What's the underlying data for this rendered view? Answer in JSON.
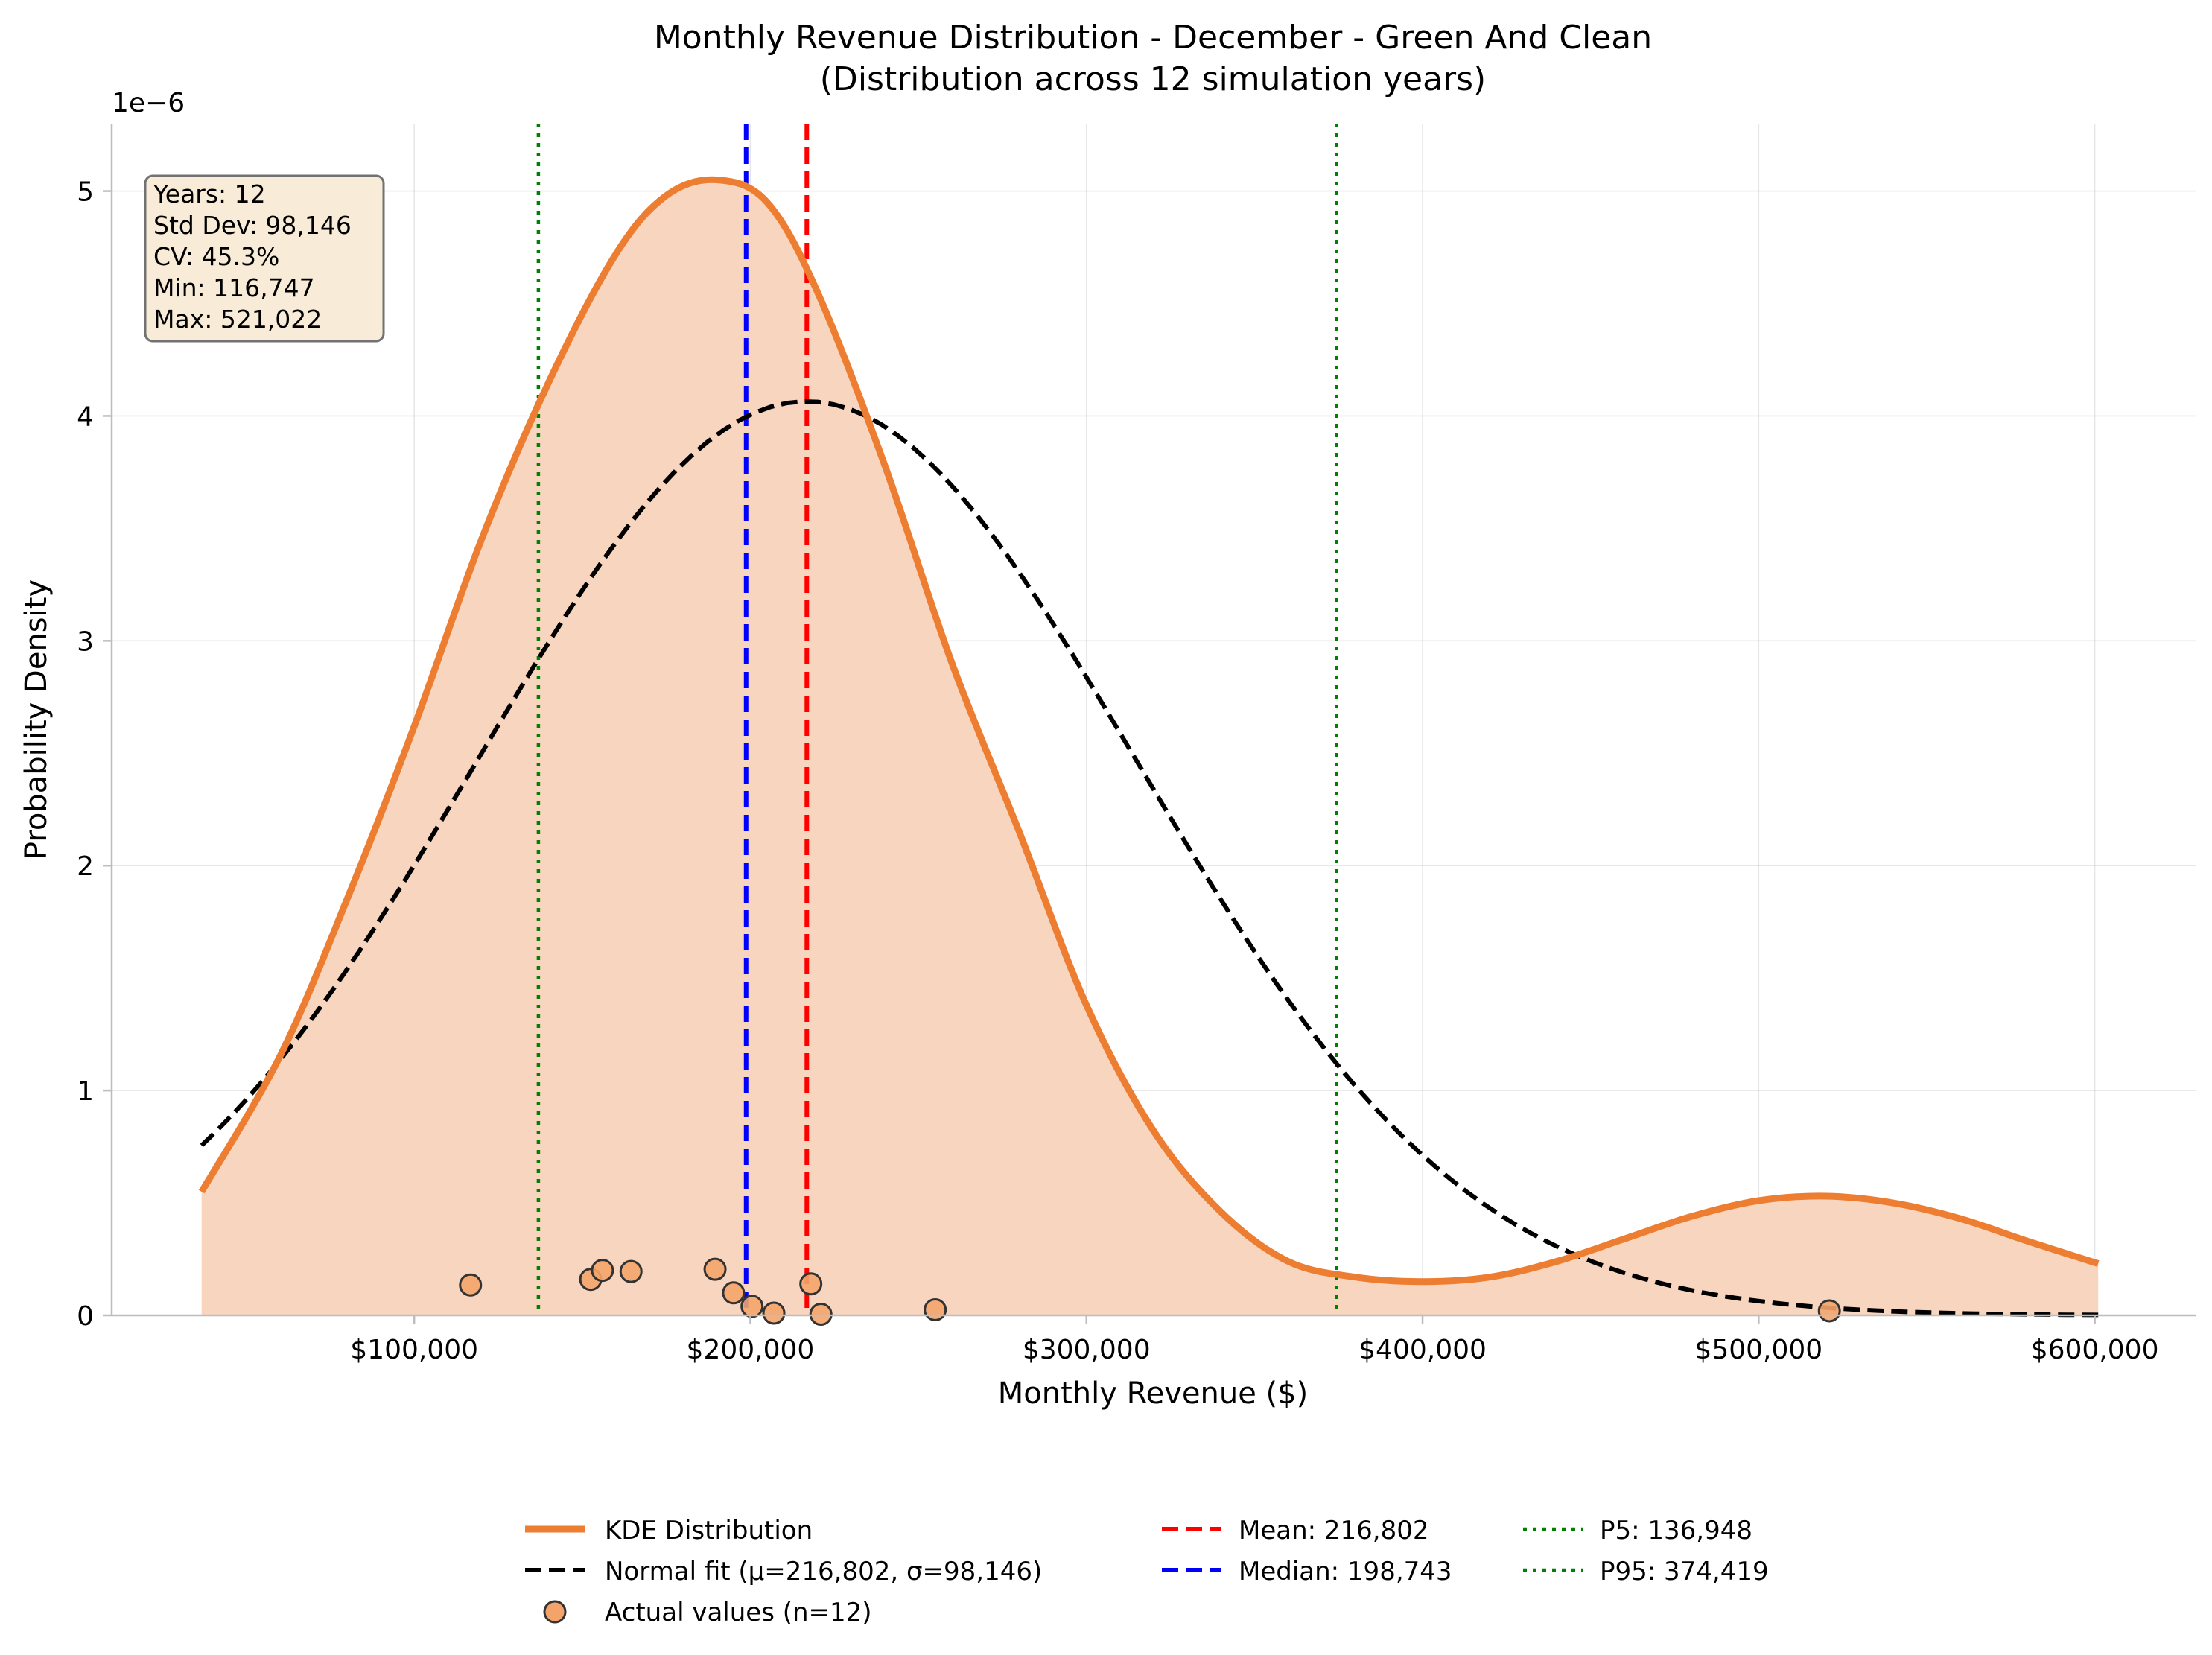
{
  "chart_data": {
    "type": "area",
    "title": "Monthly Revenue Distribution - December - Green And Clean",
    "subtitle": "(Distribution across 12 simulation years)",
    "xlabel": "Monthly Revenue ($)",
    "ylabel": "Probability Density",
    "y_scale_label": "1e−6",
    "xlim": [
      10000,
      630000
    ],
    "ylim": [
      0,
      5.3
    ],
    "y_scale_factor": 1e-06,
    "grid": true,
    "legend_placement": "bottom-center",
    "x_ticks": [
      100000,
      200000,
      300000,
      400000,
      500000,
      600000
    ],
    "x_tick_labels": [
      "$100,000",
      "$200,000",
      "$300,000",
      "$400,000",
      "$500,000",
      "$600,000"
    ],
    "y_ticks": [
      0,
      1,
      2,
      3,
      4,
      5
    ],
    "y_tick_labels": [
      "0",
      "1",
      "2",
      "3",
      "4",
      "5"
    ],
    "colors": {
      "kde": "#ed7d31",
      "kde_fill": "#f8d5bf",
      "normal": "#000000",
      "mean": "#ff0000",
      "median": "#0000ff",
      "percentile": "#008000",
      "points": "#f4a46a",
      "info_box_bg": "#f8ecd6"
    },
    "series": [
      {
        "name": "KDE Distribution",
        "kind": "kde",
        "x": [
          36747,
          60000,
          80000,
          100000,
          120000,
          140000,
          160000,
          175000,
          190000,
          205000,
          220000,
          240000,
          260000,
          280000,
          300000,
          320000,
          340000,
          360000,
          380000,
          400000,
          420000,
          440000,
          460000,
          480000,
          500000,
          520000,
          540000,
          560000,
          580000,
          601022
        ],
        "y": [
          0.55,
          1.15,
          1.85,
          2.62,
          3.45,
          4.15,
          4.72,
          4.98,
          5.05,
          4.95,
          4.55,
          3.78,
          2.9,
          2.15,
          1.38,
          0.82,
          0.46,
          0.24,
          0.17,
          0.15,
          0.17,
          0.24,
          0.34,
          0.44,
          0.51,
          0.53,
          0.5,
          0.43,
          0.33,
          0.23
        ]
      },
      {
        "name": "Normal fit (μ=216,802, σ=98,146)",
        "kind": "normal",
        "mu": 216802,
        "sigma": 98146,
        "x_range": [
          36747,
          601022
        ]
      }
    ],
    "actual_values": {
      "name": "Actual values (n=12)",
      "points": [
        {
          "x": 116747,
          "y": 0.135
        },
        {
          "x": 152500,
          "y": 0.16
        },
        {
          "x": 156000,
          "y": 0.2
        },
        {
          "x": 164500,
          "y": 0.195
        },
        {
          "x": 189500,
          "y": 0.205
        },
        {
          "x": 195000,
          "y": 0.1
        },
        {
          "x": 200500,
          "y": 0.04
        },
        {
          "x": 207000,
          "y": 0.01
        },
        {
          "x": 218000,
          "y": 0.14
        },
        {
          "x": 221000,
          "y": 0.005
        },
        {
          "x": 255000,
          "y": 0.025
        },
        {
          "x": 521022,
          "y": 0.02
        }
      ]
    },
    "reference_lines": [
      {
        "name": "Mean: 216,802",
        "x": 216802,
        "style": "dashed",
        "color": "#ff0000"
      },
      {
        "name": "Median: 198,743",
        "x": 198743,
        "style": "dashed",
        "color": "#0000ff"
      },
      {
        "name": "P5: 136,948",
        "x": 136948,
        "style": "dotted",
        "color": "#008000"
      },
      {
        "name": "P95: 374,419",
        "x": 374419,
        "style": "dotted",
        "color": "#008000"
      }
    ],
    "info_box": [
      "Years: 12",
      "Std Dev: 98,146",
      "CV: 45.3%",
      "Min: 116,747",
      "Max: 521,022"
    ],
    "legend": [
      {
        "label": "KDE Distribution",
        "kind": "kde-line"
      },
      {
        "label": "Normal fit (μ=216,802, σ=98,146)",
        "kind": "normal-line"
      },
      {
        "label": "Actual values (n=12)",
        "kind": "point"
      },
      {
        "label": "Mean: 216,802",
        "kind": "mean-line"
      },
      {
        "label": "Median: 198,743",
        "kind": "median-line"
      },
      {
        "label": "P5: 136,948",
        "kind": "p5-line"
      },
      {
        "label": "P95: 374,419",
        "kind": "p95-line"
      }
    ]
  }
}
